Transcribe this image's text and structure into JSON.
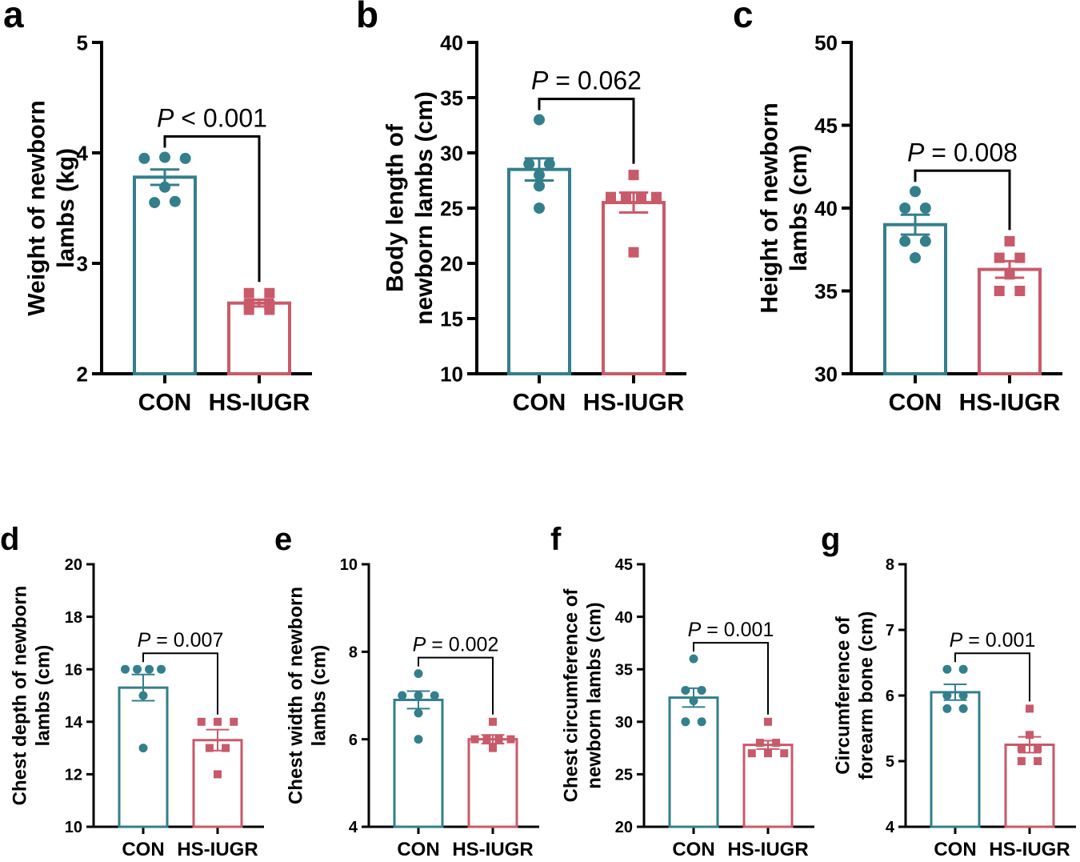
{
  "colors": {
    "con": "#347f8c",
    "iugr": "#c95a6a",
    "axis": "#000000"
  },
  "chart_data": [
    {
      "type": "bar",
      "panel_label": "a",
      "ylabel_lines": [
        "Weight of newborn",
        "lambs (kg)"
      ],
      "categories": [
        "CON",
        "HS-IUGR"
      ],
      "ylim": [
        2,
        5
      ],
      "yticks": [
        2,
        3,
        4,
        5
      ],
      "p_prefix": "P",
      "p_text": " < 0.001",
      "series": [
        {
          "name": "CON",
          "mean": 3.78,
          "sem": 0.07,
          "points": [
            3.95,
            3.96,
            3.95,
            3.69,
            3.55,
            3.56
          ]
        },
        {
          "name": "HS-IUGR",
          "mean": 2.64,
          "sem": 0.03,
          "points": [
            2.73,
            2.73,
            2.63,
            2.62,
            2.58,
            2.58
          ]
        }
      ]
    },
    {
      "type": "bar",
      "panel_label": "b",
      "ylabel_lines": [
        "Body length of",
        "newborn lambs (cm)"
      ],
      "categories": [
        "CON",
        "HS-IUGR"
      ],
      "ylim": [
        10,
        40
      ],
      "yticks": [
        10,
        15,
        20,
        25,
        30,
        35,
        40
      ],
      "p_prefix": "P",
      "p_text": " = 0.062",
      "series": [
        {
          "name": "CON",
          "mean": 28.5,
          "sem": 1.0,
          "points": [
            33,
            29,
            29,
            28,
            27,
            25
          ]
        },
        {
          "name": "HS-IUGR",
          "mean": 25.5,
          "sem": 0.9,
          "points": [
            28,
            26,
            26,
            26,
            26,
            21
          ]
        }
      ]
    },
    {
      "type": "bar",
      "panel_label": "c",
      "ylabel_lines": [
        "Height of newborn",
        "lambs (cm)"
      ],
      "categories": [
        "CON",
        "HS-IUGR"
      ],
      "ylim": [
        30,
        50
      ],
      "yticks": [
        30,
        35,
        40,
        45,
        50
      ],
      "p_prefix": "P",
      "p_text": " = 0.008",
      "series": [
        {
          "name": "CON",
          "mean": 39.0,
          "sem": 0.6,
          "points": [
            41,
            40,
            40,
            38,
            38,
            37
          ]
        },
        {
          "name": "HS-IUGR",
          "mean": 36.3,
          "sem": 0.5,
          "points": [
            38,
            37,
            37,
            36,
            35,
            35
          ]
        }
      ]
    },
    {
      "type": "bar",
      "panel_label": "d",
      "ylabel_lines": [
        "Chest depth of newborn",
        "lambs (cm)"
      ],
      "categories": [
        "CON",
        "HS-IUGR"
      ],
      "ylim": [
        10,
        20
      ],
      "yticks": [
        10,
        12,
        14,
        16,
        18,
        20
      ],
      "p_prefix": "P",
      "p_text": " = 0.007",
      "series": [
        {
          "name": "CON",
          "mean": 15.3,
          "sem": 0.5,
          "points": [
            16,
            16,
            16,
            16,
            15,
            13
          ]
        },
        {
          "name": "HS-IUGR",
          "mean": 13.3,
          "sem": 0.4,
          "points": [
            14,
            14,
            14,
            13,
            13,
            12
          ]
        }
      ]
    },
    {
      "type": "bar",
      "panel_label": "e",
      "ylabel_lines": [
        "Chest width of newborn",
        "lambs (cm)"
      ],
      "categories": [
        "CON",
        "HS-IUGR"
      ],
      "ylim": [
        4,
        10
      ],
      "yticks": [
        4,
        6,
        8,
        10
      ],
      "p_prefix": "P",
      "p_text": " = 0.002",
      "series": [
        {
          "name": "CON",
          "mean": 6.9,
          "sem": 0.2,
          "points": [
            7.5,
            7.0,
            7.0,
            7.0,
            6.6,
            6.0
          ]
        },
        {
          "name": "HS-IUGR",
          "mean": 6.0,
          "sem": 0.1,
          "points": [
            6.4,
            6.0,
            6.0,
            6.0,
            6.0,
            5.8
          ]
        }
      ]
    },
    {
      "type": "bar",
      "panel_label": "f",
      "ylabel_lines": [
        "Chest circumference of",
        "newborn lambs (cm)"
      ],
      "categories": [
        "CON",
        "HS-IUGR"
      ],
      "ylim": [
        20,
        45
      ],
      "yticks": [
        20,
        25,
        30,
        35,
        40,
        45
      ],
      "p_prefix": "P",
      "p_text": " = 0.001",
      "series": [
        {
          "name": "CON",
          "mean": 32.3,
          "sem": 0.9,
          "points": [
            36,
            33,
            33,
            32,
            30,
            30
          ]
        },
        {
          "name": "HS-IUGR",
          "mean": 27.8,
          "sem": 0.4,
          "points": [
            30,
            28,
            28,
            27,
            27,
            27
          ]
        }
      ]
    },
    {
      "type": "bar",
      "panel_label": "g",
      "ylabel_lines": [
        "Circumference of",
        "forearm bone (cm)"
      ],
      "categories": [
        "CON",
        "HS-IUGR"
      ],
      "ylim": [
        4,
        8
      ],
      "yticks": [
        4,
        5,
        6,
        7,
        8
      ],
      "p_prefix": "P",
      "p_text": " = 0.001",
      "series": [
        {
          "name": "CON",
          "mean": 6.05,
          "sem": 0.12,
          "points": [
            6.4,
            6.4,
            6.0,
            6.0,
            5.8,
            5.8
          ]
        },
        {
          "name": "HS-IUGR",
          "mean": 5.25,
          "sem": 0.12,
          "points": [
            5.8,
            5.4,
            5.2,
            5.2,
            5.0,
            5.0
          ]
        }
      ]
    }
  ]
}
